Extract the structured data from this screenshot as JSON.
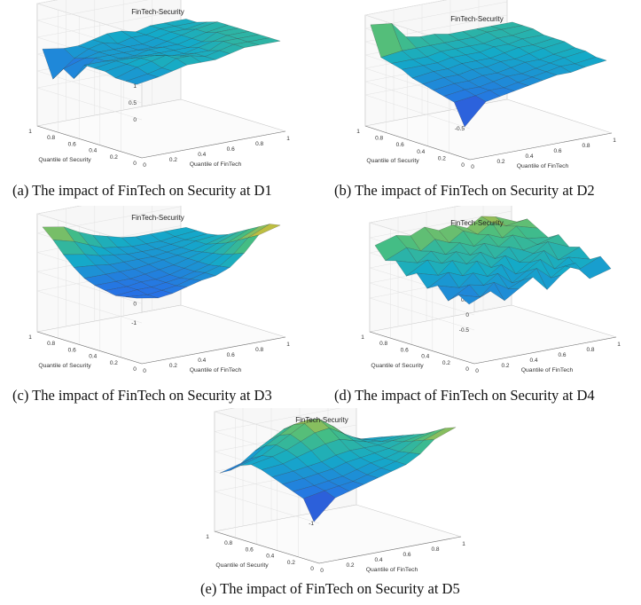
{
  "figure": {
    "panels": [
      {
        "caption": "(a) The impact of FinTech on Security at D1"
      },
      {
        "caption": "(b) The impact of FinTech on Security at D2"
      },
      {
        "caption": "(c) The impact of FinTech on Security at D3"
      },
      {
        "caption": "(d) The impact of FinTech on Security at D4"
      },
      {
        "caption": "(e) The impact of FinTech on Security at D5"
      }
    ]
  },
  "chart_data": [
    {
      "type": "surface",
      "title": "FinTech-Security",
      "xlabel": "Quantile of FinTech",
      "ylabel": "Quantile of Security",
      "x_ticks": [
        "0",
        "0.2",
        "0.4",
        "0.6",
        "0.8",
        "1"
      ],
      "y_ticks": [
        "0",
        "0.2",
        "0.4",
        "0.6",
        "0.8",
        "1"
      ],
      "z_ticks": [
        "0",
        "0.5",
        "1",
        "1.5",
        "2",
        "2.5"
      ],
      "xlim": [
        0,
        1
      ],
      "ylim": [
        0,
        1
      ],
      "zlim": [
        0,
        2.5
      ],
      "x": [
        0.05,
        0.15,
        0.25,
        0.35,
        0.45,
        0.55,
        0.65,
        0.75,
        0.85,
        0.95
      ],
      "y": [
        0.05,
        0.15,
        0.25,
        0.35,
        0.45,
        0.55,
        0.65,
        0.75,
        0.85,
        0.95
      ],
      "z_rows_by_security": [
        [
          1.0,
          1.1,
          1.2,
          1.3,
          1.3,
          1.3,
          1.4,
          1.5,
          1.5,
          1.5
        ],
        [
          1.0,
          1.1,
          1.2,
          1.4,
          1.4,
          1.3,
          1.4,
          1.5,
          1.5,
          1.5
        ],
        [
          1.0,
          1.2,
          1.3,
          1.4,
          1.3,
          1.3,
          1.3,
          1.5,
          1.5,
          1.5
        ],
        [
          1.1,
          1.2,
          1.3,
          1.3,
          1.2,
          1.2,
          1.3,
          1.4,
          1.5,
          1.5
        ],
        [
          1.1,
          1.2,
          1.2,
          1.2,
          1.2,
          1.2,
          1.2,
          1.3,
          1.5,
          1.5
        ],
        [
          1.1,
          1.1,
          1.1,
          1.1,
          1.2,
          1.2,
          1.2,
          1.3,
          1.4,
          1.5
        ],
        [
          0.6,
          1.1,
          1.1,
          1.1,
          1.1,
          1.1,
          1.2,
          1.3,
          1.4,
          1.5
        ],
        [
          0.8,
          1.0,
          1.1,
          1.1,
          1.1,
          1.1,
          1.2,
          1.3,
          1.3,
          1.4
        ],
        [
          0.4,
          0.9,
          1.1,
          1.2,
          1.1,
          1.2,
          1.2,
          1.3,
          1.3,
          1.3
        ],
        [
          1.2,
          1.1,
          1.1,
          1.2,
          1.3,
          1.3,
          1.2,
          1.3,
          1.3,
          1.3
        ]
      ]
    },
    {
      "type": "surface",
      "title": "FinTech-Security",
      "xlabel": "Quantile of FinTech",
      "ylabel": "Quantile of Security",
      "x_ticks": [
        "0",
        "0.2",
        "0.4",
        "0.6",
        "0.8",
        "1"
      ],
      "y_ticks": [
        "0",
        "0.2",
        "0.4",
        "0.6",
        "0.8",
        "1"
      ],
      "z_ticks": [
        "-0.5",
        "0",
        "0.5",
        "1",
        "1.5",
        "2",
        "2.5"
      ],
      "xlim": [
        0,
        1
      ],
      "ylim": [
        0,
        1
      ],
      "zlim": [
        -0.5,
        2.5
      ],
      "x": [
        0.05,
        0.15,
        0.25,
        0.35,
        0.45,
        0.55,
        0.65,
        0.75,
        0.85,
        0.95
      ],
      "y": [
        0.05,
        0.15,
        0.25,
        0.35,
        0.45,
        0.55,
        0.65,
        0.75,
        0.85,
        0.95
      ],
      "z_rows_by_security": [
        [
          -0.5,
          0.3,
          0.4,
          0.5,
          0.6,
          0.7,
          0.8,
          0.8,
          0.9,
          1.0
        ],
        [
          0.3,
          0.4,
          0.5,
          0.5,
          0.6,
          0.7,
          0.8,
          0.9,
          0.9,
          1.0
        ],
        [
          0.4,
          0.5,
          0.5,
          0.6,
          0.7,
          0.7,
          0.8,
          0.9,
          1.0,
          1.1
        ],
        [
          0.5,
          0.6,
          0.6,
          0.7,
          0.7,
          0.8,
          0.9,
          0.9,
          1.0,
          1.1
        ],
        [
          0.6,
          0.7,
          0.7,
          0.8,
          0.8,
          0.9,
          0.9,
          1.0,
          1.1,
          1.2
        ],
        [
          0.7,
          0.8,
          0.8,
          0.9,
          0.9,
          0.9,
          1.0,
          1.1,
          1.1,
          1.2
        ],
        [
          0.9,
          0.9,
          0.9,
          1.0,
          1.0,
          1.0,
          1.1,
          1.1,
          1.2,
          1.2
        ],
        [
          1.0,
          1.0,
          1.0,
          1.1,
          1.1,
          1.1,
          1.1,
          1.2,
          1.2,
          1.3
        ],
        [
          1.1,
          1.2,
          1.2,
          1.2,
          1.2,
          1.2,
          1.2,
          1.3,
          1.3,
          1.3
        ],
        [
          2.2,
          2.1,
          1.5,
          1.4,
          1.4,
          1.3,
          1.3,
          1.3,
          1.3,
          1.3
        ]
      ]
    },
    {
      "type": "surface",
      "title": "FinTech-Security",
      "xlabel": "Quantile of FinTech",
      "ylabel": "Quantile of Security",
      "x_ticks": [
        "0",
        "0.2",
        "0.4",
        "0.6",
        "0.8",
        "1"
      ],
      "y_ticks": [
        "0",
        "0.2",
        "0.4",
        "0.6",
        "0.8",
        "1"
      ],
      "z_ticks": [
        "-1",
        "0",
        "1",
        "2",
        "3"
      ],
      "xlim": [
        0,
        1
      ],
      "ylim": [
        0,
        1
      ],
      "zlim": [
        -1,
        3
      ],
      "x": [
        0.05,
        0.15,
        0.25,
        0.35,
        0.45,
        0.55,
        0.65,
        0.75,
        0.85,
        0.95
      ],
      "y": [
        0.05,
        0.15,
        0.25,
        0.35,
        0.45,
        0.55,
        0.65,
        0.75,
        0.85,
        0.95
      ],
      "z_rows_by_security": [
        [
          0.2,
          0.0,
          0.1,
          0.3,
          0.5,
          0.6,
          0.9,
          1.5,
          2.3,
          2.6
        ],
        [
          0.1,
          0.0,
          0.1,
          0.2,
          0.4,
          0.6,
          0.8,
          1.3,
          2.0,
          2.5
        ],
        [
          0.0,
          0.1,
          0.1,
          0.2,
          0.3,
          0.5,
          0.7,
          1.1,
          1.7,
          2.2
        ],
        [
          0.1,
          0.1,
          0.2,
          0.2,
          0.3,
          0.5,
          0.7,
          1.0,
          1.4,
          1.9
        ],
        [
          0.2,
          0.2,
          0.2,
          0.3,
          0.4,
          0.5,
          0.7,
          0.9,
          1.2,
          1.6
        ],
        [
          0.4,
          0.4,
          0.4,
          0.4,
          0.5,
          0.6,
          0.7,
          0.8,
          1.0,
          1.3
        ],
        [
          0.8,
          0.7,
          0.6,
          0.6,
          0.6,
          0.6,
          0.7,
          0.8,
          1.0,
          1.1
        ],
        [
          1.3,
          1.1,
          0.9,
          0.8,
          0.7,
          0.7,
          0.7,
          0.8,
          0.9,
          1.0
        ],
        [
          1.9,
          1.6,
          1.3,
          1.0,
          0.9,
          0.8,
          0.8,
          0.8,
          0.9,
          1.0
        ],
        [
          2.4,
          2.2,
          1.8,
          1.5,
          1.3,
          1.1,
          1.0,
          1.0,
          1.0,
          1.0
        ]
      ]
    },
    {
      "type": "surface",
      "title": "FinTech-Security",
      "xlabel": "Quantile of FinTech",
      "ylabel": "Quantile of Security",
      "x_ticks": [
        "0",
        "0.2",
        "0.4",
        "0.6",
        "0.8",
        "1"
      ],
      "y_ticks": [
        "0",
        "0.2",
        "0.4",
        "0.6",
        "0.8",
        "1"
      ],
      "z_ticks": [
        "-0.5",
        "0",
        "0.5",
        "1",
        "1.5",
        "2"
      ],
      "xlim": [
        0,
        1
      ],
      "ylim": [
        0,
        1
      ],
      "zlim": [
        -0.5,
        2
      ],
      "x": [
        0.05,
        0.15,
        0.25,
        0.35,
        0.45,
        0.55,
        0.65,
        0.75,
        0.85,
        0.95
      ],
      "y": [
        0.05,
        0.15,
        0.25,
        0.35,
        0.45,
        0.55,
        0.65,
        0.75,
        0.85,
        0.95
      ],
      "z_rows_by_security": [
        [
          0.3,
          0.6,
          0.2,
          0.5,
          0.8,
          0.3,
          0.7,
          1.0,
          0.4,
          0.6
        ],
        [
          0.5,
          0.3,
          0.7,
          0.4,
          0.6,
          0.9,
          0.5,
          0.8,
          0.6,
          0.9
        ],
        [
          0.2,
          0.6,
          0.5,
          0.8,
          0.4,
          0.7,
          1.0,
          0.6,
          0.9,
          0.7
        ],
        [
          0.6,
          0.4,
          0.8,
          0.6,
          0.9,
          0.5,
          0.8,
          1.1,
          0.7,
          1.0
        ],
        [
          0.4,
          0.8,
          0.6,
          1.0,
          0.7,
          1.0,
          0.7,
          0.9,
          1.2,
          0.9
        ],
        [
          0.8,
          0.6,
          1.0,
          0.8,
          1.1,
          0.8,
          1.1,
          0.9,
          1.0,
          1.2
        ],
        [
          0.6,
          1.0,
          0.8,
          1.1,
          0.9,
          1.2,
          1.0,
          1.3,
          1.1,
          1.0
        ],
        [
          1.0,
          0.8,
          1.1,
          0.9,
          1.2,
          1.0,
          1.3,
          1.1,
          1.4,
          1.2
        ],
        [
          0.9,
          1.2,
          1.0,
          1.3,
          1.1,
          1.4,
          1.2,
          1.5,
          1.3,
          1.4
        ],
        [
          1.3,
          1.5,
          1.4,
          1.6,
          1.4,
          1.5,
          1.3,
          1.6,
          1.5,
          1.2
        ]
      ]
    },
    {
      "type": "surface",
      "title": "FinTech-Security",
      "xlabel": "Quantile of FinTech",
      "ylabel": "Quantile of Security",
      "x_ticks": [
        "0",
        "0.2",
        "0.4",
        "0.6",
        "0.8",
        "1"
      ],
      "y_ticks": [
        "0",
        "0.2",
        "0.4",
        "0.6",
        "0.8",
        "1"
      ],
      "z_ticks": [
        "-1",
        "0",
        "1",
        "2",
        "3"
      ],
      "xlim": [
        0,
        1
      ],
      "ylim": [
        0,
        1
      ],
      "zlim": [
        -1,
        3
      ],
      "x": [
        0.05,
        0.15,
        0.25,
        0.35,
        0.45,
        0.55,
        0.65,
        0.75,
        0.85,
        0.95
      ],
      "y": [
        0.05,
        0.15,
        0.25,
        0.35,
        0.45,
        0.55,
        0.65,
        0.75,
        0.85,
        0.95
      ],
      "z_rows_by_security": [
        [
          -1.0,
          0.0,
          0.2,
          0.4,
          0.6,
          0.8,
          1.0,
          1.4,
          2.0,
          2.4
        ],
        [
          0.0,
          0.2,
          0.3,
          0.4,
          0.6,
          0.8,
          1.0,
          1.3,
          1.8,
          2.2
        ],
        [
          0.2,
          0.3,
          0.4,
          0.5,
          0.7,
          0.9,
          1.0,
          1.2,
          1.6,
          1.9
        ],
        [
          0.4,
          0.5,
          0.6,
          0.7,
          0.9,
          1.0,
          1.1,
          1.2,
          1.4,
          1.6
        ],
        [
          0.6,
          0.7,
          0.8,
          0.9,
          1.1,
          1.2,
          1.2,
          1.2,
          1.3,
          1.4
        ],
        [
          0.8,
          0.9,
          1.1,
          1.3,
          1.5,
          1.6,
          1.4,
          1.2,
          1.1,
          1.2
        ],
        [
          0.9,
          1.1,
          1.3,
          1.6,
          1.9,
          2.0,
          1.6,
          1.2,
          1.0,
          1.0
        ],
        [
          0.7,
          1.0,
          1.4,
          1.8,
          2.2,
          2.3,
          1.8,
          1.2,
          0.9,
          0.8
        ],
        [
          0.3,
          0.7,
          1.2,
          1.6,
          2.0,
          2.1,
          1.7,
          1.1,
          0.7,
          0.5
        ],
        [
          0.0,
          0.3,
          0.8,
          1.2,
          1.6,
          1.7,
          1.4,
          0.9,
          0.5,
          0.2
        ]
      ]
    }
  ]
}
